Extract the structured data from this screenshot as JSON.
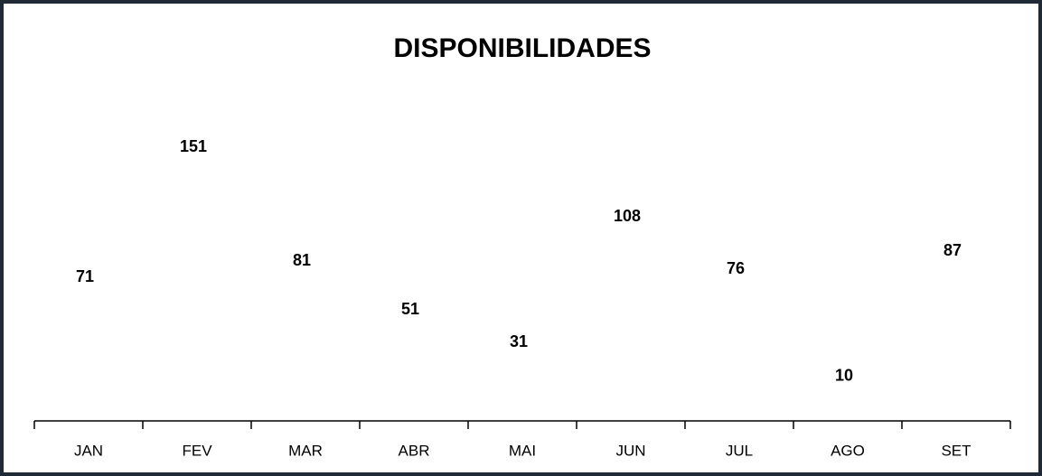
{
  "chart_data": {
    "type": "line",
    "title": "DISPONIBILIDADES",
    "categories": [
      "JAN",
      "FEV",
      "MAR",
      "ABR",
      "MAI",
      "JUN",
      "JUL",
      "AGO",
      "SET"
    ],
    "values": [
      71,
      151,
      81,
      51,
      31,
      108,
      76,
      10,
      87
    ],
    "color": "#262626"
  }
}
